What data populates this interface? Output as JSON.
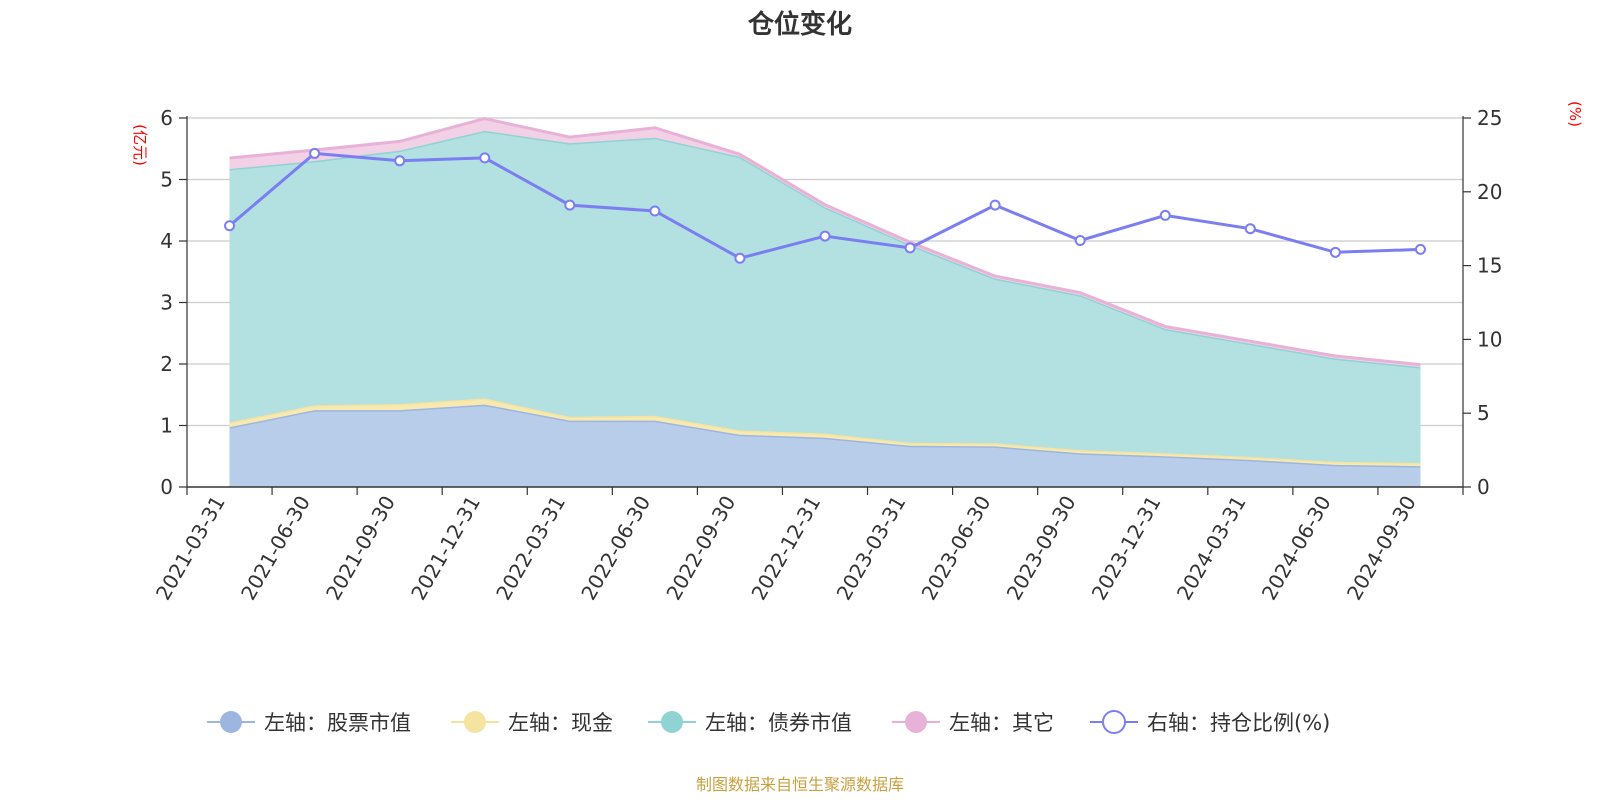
{
  "chart_data": {
    "type": "area",
    "title": "仓位变化",
    "left_unit": "(亿元)",
    "right_unit": "(%)",
    "left_ylim": [
      0,
      6
    ],
    "left_ticks": [
      "0",
      "1",
      "2",
      "3",
      "4",
      "5",
      "6"
    ],
    "right_ylim": [
      0,
      25
    ],
    "right_ticks": [
      "0",
      "5",
      "10",
      "15",
      "20",
      "25"
    ],
    "categories": [
      "2021-03-31",
      "2021-06-30",
      "2021-09-30",
      "2021-12-31",
      "2022-03-31",
      "2022-06-30",
      "2022-09-30",
      "2022-12-31",
      "2023-03-31",
      "2023-06-30",
      "2023-09-30",
      "2023-12-31",
      "2024-03-31",
      "2024-06-30",
      "2024-09-30"
    ],
    "stacked_series": [
      {
        "name": "左轴：股票市值",
        "color": "#9db6e0",
        "fill": "#b8cdea",
        "values": [
          0.97,
          1.25,
          1.25,
          1.34,
          1.08,
          1.08,
          0.85,
          0.8,
          0.67,
          0.66,
          0.55,
          0.5,
          0.44,
          0.36,
          0.34
        ]
      },
      {
        "name": "左轴：现金",
        "color": "#f5e3a0",
        "fill": "#f7e9b0",
        "values": [
          0.08,
          0.08,
          0.1,
          0.1,
          0.06,
          0.08,
          0.07,
          0.07,
          0.05,
          0.05,
          0.05,
          0.05,
          0.05,
          0.05,
          0.05
        ]
      },
      {
        "name": "左轴：债券市值",
        "color": "#8fd3d3",
        "fill": "#b3e0e0",
        "values": [
          4.12,
          3.97,
          4.12,
          4.35,
          4.45,
          4.52,
          4.45,
          3.68,
          3.22,
          2.68,
          2.52,
          2.02,
          1.84,
          1.68,
          1.56
        ]
      },
      {
        "name": "左轴：其它",
        "color": "#e8b2d8",
        "fill": "#f2d0e6",
        "values": [
          0.18,
          0.18,
          0.15,
          0.2,
          0.1,
          0.16,
          0.04,
          0.04,
          0.04,
          0.04,
          0.04,
          0.04,
          0.04,
          0.04,
          0.04
        ]
      }
    ],
    "line_series": {
      "name": "右轴：持仓比例(%)",
      "color": "#7b7ef0",
      "values": [
        17.7,
        22.6,
        22.1,
        22.3,
        19.1,
        18.7,
        15.5,
        17.0,
        16.2,
        19.1,
        16.7,
        18.4,
        17.5,
        15.9,
        16.1
      ]
    },
    "source": "制图数据来自恒生聚源数据库"
  }
}
